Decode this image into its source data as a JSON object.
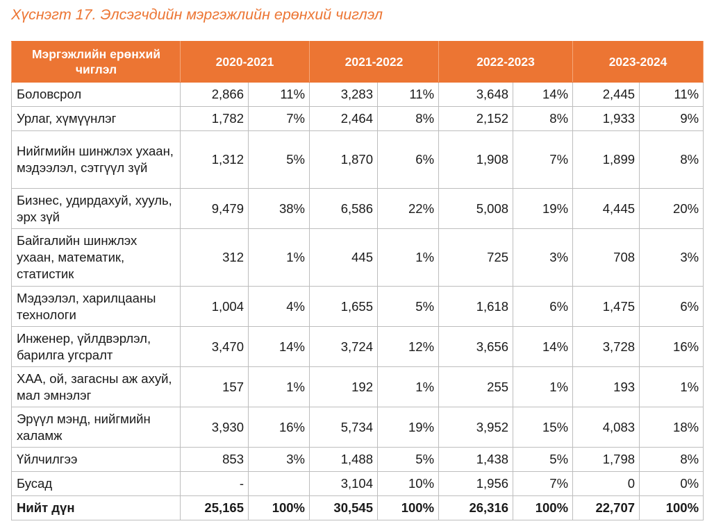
{
  "caption": "Хүснэгт 17. Элсэгчдийн мэргэжлийн ерөнхий чиглэл",
  "table": {
    "header_first": "Мэргэжлийн ерөнхий чиглэл",
    "years": [
      "2020-2021",
      "2021-2022",
      "2022-2023",
      "2023-2024"
    ],
    "rows": [
      {
        "label": "Боловсрол",
        "cells": [
          "2,866",
          "11%",
          "3,283",
          "11%",
          "3,648",
          "14%",
          "2,445",
          "11%"
        ]
      },
      {
        "label": "Урлаг, хүмүүнлэг",
        "cells": [
          "1,782",
          "7%",
          "2,464",
          "8%",
          "2,152",
          "8%",
          "1,933",
          "9%"
        ]
      },
      {
        "label": "Нийгмийн шинжлэх ухаан, мэдээлэл, сэтгүүл зүй",
        "cells": [
          "1,312",
          "5%",
          "1,870",
          "6%",
          "1,908",
          "7%",
          "1,899",
          "8%"
        ]
      },
      {
        "label": "Бизнес, удирдахуй, хууль, эрх зүй",
        "cells": [
          "9,479",
          "38%",
          "6,586",
          "22%",
          "5,008",
          "19%",
          "4,445",
          "20%"
        ]
      },
      {
        "label": "Байгалийн шинжлэх ухаан, математик, статистик",
        "cells": [
          "312",
          "1%",
          "445",
          "1%",
          "725",
          "3%",
          "708",
          "3%"
        ]
      },
      {
        "label": "Мэдээлэл, харилцааны технологи",
        "cells": [
          "1,004",
          "4%",
          "1,655",
          "5%",
          "1,618",
          "6%",
          "1,475",
          "6%"
        ]
      },
      {
        "label": "Инженер, үйлдвэрлэл, барилга угсралт",
        "cells": [
          "3,470",
          "14%",
          "3,724",
          "12%",
          "3,656",
          "14%",
          "3,728",
          "16%"
        ]
      },
      {
        "label": "ХАА, ой, загасны аж ахуй, мал эмнэлэг",
        "cells": [
          "157",
          "1%",
          "192",
          "1%",
          "255",
          "1%",
          "193",
          "1%"
        ]
      },
      {
        "label": "Эрүүл мэнд, нийгмийн халамж",
        "cells": [
          "3,930",
          "16%",
          "5,734",
          "19%",
          "3,952",
          "15%",
          "4,083",
          "18%"
        ]
      },
      {
        "label": "Үйлчилгээ",
        "cells": [
          "853",
          "3%",
          "1,488",
          "5%",
          "1,438",
          "5%",
          "1,798",
          "8%"
        ]
      },
      {
        "label": "Бусад",
        "cells": [
          "-",
          "",
          "3,104",
          "10%",
          "1,956",
          "7%",
          "0",
          "0%"
        ]
      }
    ],
    "total": {
      "label": "Нийт дүн",
      "cells": [
        "25,165",
        "100%",
        "30,545",
        "100%",
        "26,316",
        "100%",
        "22,707",
        "100%"
      ]
    }
  }
}
